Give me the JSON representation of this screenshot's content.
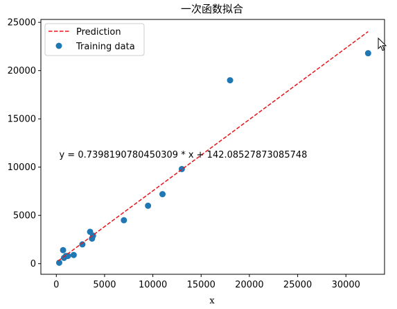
{
  "chart_data": {
    "type": "scatter",
    "title": "一次函数拟合",
    "xlabel": "x",
    "ylabel": "",
    "xlim": [
      -1600,
      34000
    ],
    "ylim": [
      -1100,
      25300
    ],
    "xticks": [
      0,
      5000,
      10000,
      15000,
      20000,
      25000,
      30000
    ],
    "yticks": [
      0,
      5000,
      10000,
      15000,
      20000,
      25000
    ],
    "grid": false,
    "legend_position": "upper-left",
    "series": [
      {
        "name": "Prediction",
        "kind": "line",
        "style": "dashed",
        "color": "#e8161b",
        "x": [
          200,
          32300
        ],
        "y": [
          290,
          24040
        ]
      },
      {
        "name": "Training data",
        "kind": "scatter",
        "color": "#1f77b4",
        "points": [
          {
            "x": 300,
            "y": 100
          },
          {
            "x": 700,
            "y": 1400
          },
          {
            "x": 800,
            "y": 600
          },
          {
            "x": 1000,
            "y": 800
          },
          {
            "x": 1200,
            "y": 800
          },
          {
            "x": 1800,
            "y": 900
          },
          {
            "x": 2700,
            "y": 2000
          },
          {
            "x": 3500,
            "y": 3300
          },
          {
            "x": 3700,
            "y": 2600
          },
          {
            "x": 3800,
            "y": 2900
          },
          {
            "x": 7000,
            "y": 4500
          },
          {
            "x": 9500,
            "y": 6000
          },
          {
            "x": 11000,
            "y": 7200
          },
          {
            "x": 13000,
            "y": 9800
          },
          {
            "x": 18000,
            "y": 19000
          },
          {
            "x": 32300,
            "y": 21800
          }
        ]
      }
    ],
    "annotations": [
      {
        "text": "y = 0.7398190780450309 * x + 142.08527873085748",
        "x": 300,
        "y": 11000
      }
    ]
  }
}
